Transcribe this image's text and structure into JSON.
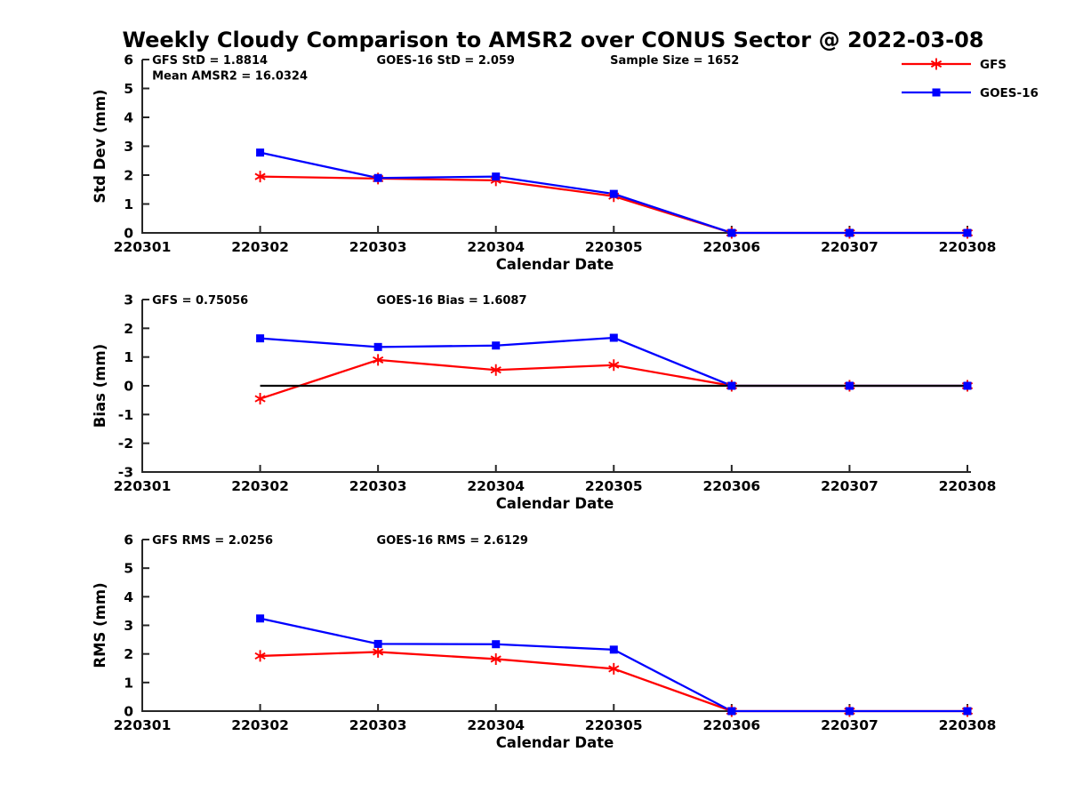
{
  "title": "Weekly Cloudy Comparison to AMSR2 over CONUS Sector @ 2022-03-08",
  "colors": {
    "gfs": "#ff0000",
    "goes16": "#0000ff",
    "axis": "#262626",
    "text": "#000000",
    "zero_line": "#000000",
    "background": "#ffffff"
  },
  "legend": {
    "position": "top-right",
    "entries": [
      {
        "label": "GFS",
        "color": "#ff0000",
        "marker": "star"
      },
      {
        "label": "GOES-16",
        "color": "#0000ff",
        "marker": "square"
      }
    ]
  },
  "chart_data": [
    {
      "type": "line",
      "panel": "std-dev",
      "ylabel": "Std Dev (mm)",
      "xlabel": "Calendar Date",
      "ylim": [
        0,
        6
      ],
      "yticks": [
        0,
        1,
        2,
        3,
        4,
        5,
        6
      ],
      "categories": [
        "220301",
        "220302",
        "220303",
        "220304",
        "220305",
        "220306",
        "220307",
        "220308"
      ],
      "grid": false,
      "show_legend": true,
      "annotations": [
        {
          "text": "GFS StD = 1.8814",
          "fx": 0.012,
          "row": 0
        },
        {
          "text": "Mean AMSR2 = 16.0324",
          "fx": 0.012,
          "row": 1
        },
        {
          "text": "GOES-16 StD = 2.059",
          "fx": 0.284,
          "row": 0
        },
        {
          "text": "Sample Size = 1652",
          "fx": 0.567,
          "row": 0
        }
      ],
      "series": [
        {
          "name": "GFS",
          "color": "#ff0000",
          "marker": "star",
          "values": [
            null,
            1.95,
            1.88,
            1.82,
            1.27,
            0,
            0,
            0
          ]
        },
        {
          "name": "GOES-16",
          "color": "#0000ff",
          "marker": "square",
          "values": [
            null,
            2.78,
            1.9,
            1.95,
            1.35,
            0,
            0,
            0
          ]
        }
      ]
    },
    {
      "type": "line",
      "panel": "bias",
      "ylabel": "Bias (mm)",
      "xlabel": "Calendar Date",
      "ylim": [
        -3,
        3
      ],
      "yticks": [
        -3,
        -2,
        -1,
        0,
        1,
        2,
        3
      ],
      "categories": [
        "220301",
        "220302",
        "220303",
        "220304",
        "220305",
        "220306",
        "220307",
        "220308"
      ],
      "grid": false,
      "show_legend": false,
      "zero_line": {
        "y": 0,
        "from": "220302",
        "to": "220308",
        "color": "#000000"
      },
      "annotations": [
        {
          "text": "GFS = 0.75056",
          "fx": 0.012,
          "row": 0
        },
        {
          "text": "GOES-16 Bias  = 1.6087",
          "fx": 0.284,
          "row": 0
        }
      ],
      "series": [
        {
          "name": "GFS",
          "color": "#ff0000",
          "marker": "star",
          "values": [
            null,
            -0.45,
            0.9,
            0.55,
            0.72,
            0,
            0,
            0
          ]
        },
        {
          "name": "GOES-16",
          "color": "#0000ff",
          "marker": "square",
          "values": [
            null,
            1.65,
            1.35,
            1.4,
            1.67,
            0,
            0,
            0
          ]
        }
      ]
    },
    {
      "type": "line",
      "panel": "rms",
      "ylabel": "RMS (mm)",
      "xlabel": "Calendar Date",
      "ylim": [
        0,
        6
      ],
      "yticks": [
        0,
        1,
        2,
        3,
        4,
        5,
        6
      ],
      "categories": [
        "220301",
        "220302",
        "220303",
        "220304",
        "220305",
        "220306",
        "220307",
        "220308"
      ],
      "grid": false,
      "show_legend": false,
      "annotations": [
        {
          "text": "GFS RMS = 2.0256",
          "fx": 0.012,
          "row": 0
        },
        {
          "text": "GOES-16 RMS = 2.6129",
          "fx": 0.284,
          "row": 0
        }
      ],
      "series": [
        {
          "name": "GFS",
          "color": "#ff0000",
          "marker": "star",
          "values": [
            null,
            1.93,
            2.07,
            1.82,
            1.48,
            0,
            0,
            0
          ]
        },
        {
          "name": "GOES-16",
          "color": "#0000ff",
          "marker": "square",
          "values": [
            null,
            3.24,
            2.35,
            2.34,
            2.15,
            0,
            0,
            0
          ]
        }
      ]
    }
  ]
}
